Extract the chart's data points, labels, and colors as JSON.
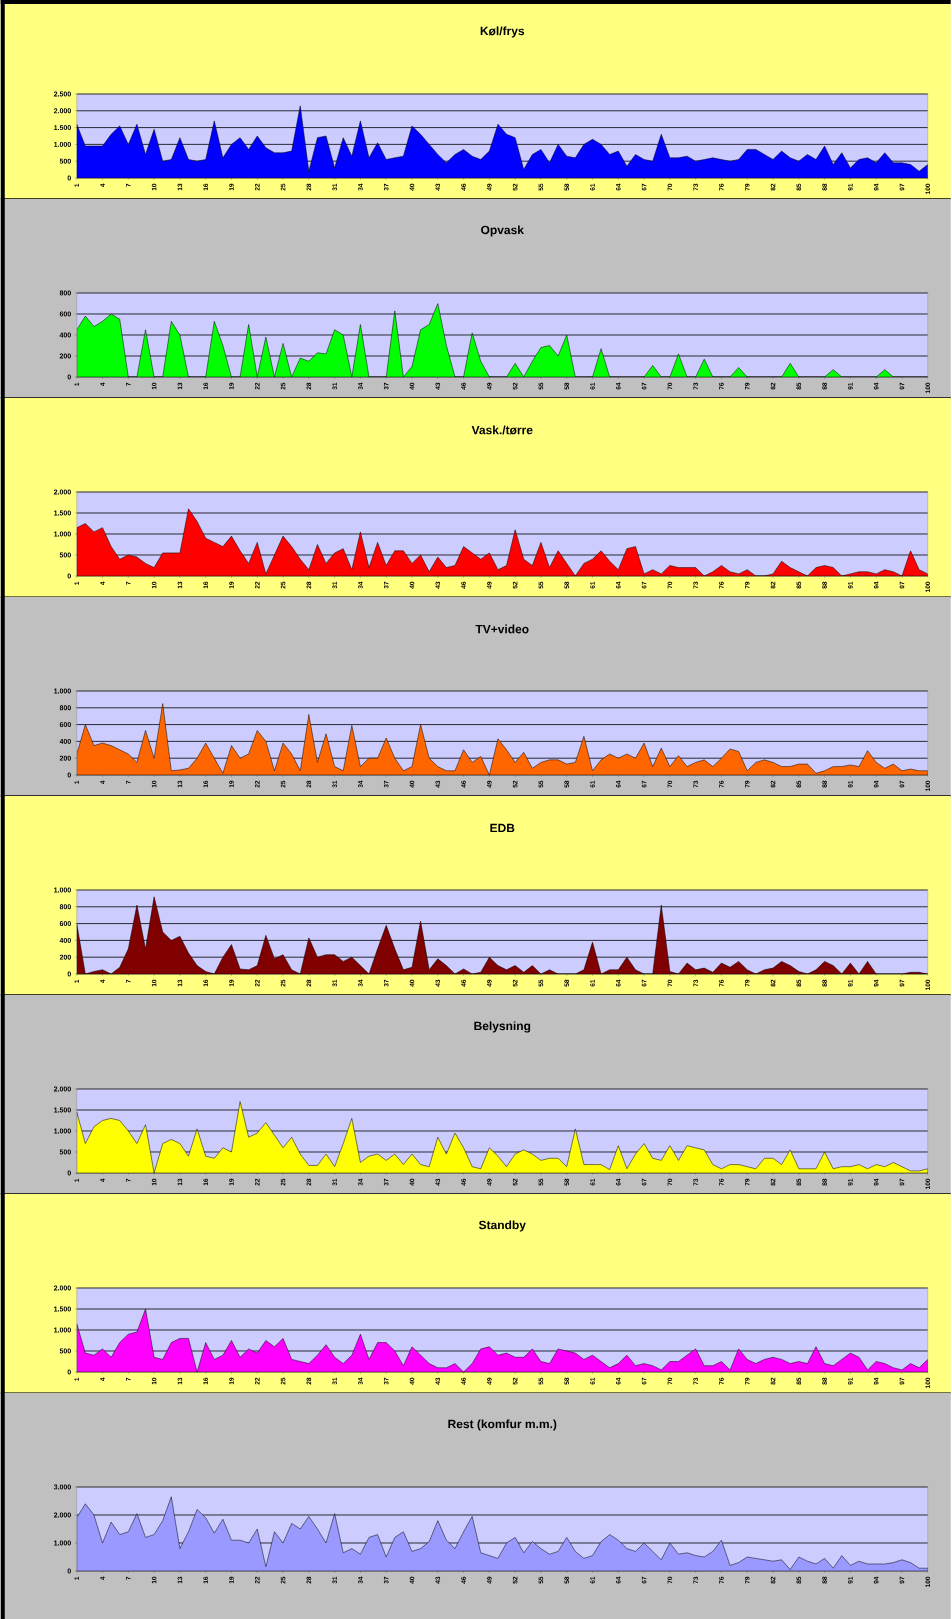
{
  "chart_data": [
    {
      "type": "area",
      "title": "Køl/frys",
      "color": "#0000ff",
      "grid": "y",
      "xlim": [
        1,
        100
      ],
      "ylim": [
        0,
        2500
      ],
      "xticks": [
        1,
        4,
        7,
        10,
        13,
        16,
        19,
        22,
        25,
        28,
        31,
        34,
        37,
        40,
        43,
        46,
        49,
        52,
        55,
        58,
        61,
        64,
        67,
        70,
        73,
        76,
        79,
        82,
        85,
        88,
        91,
        94,
        97,
        100
      ],
      "yticks": [
        0,
        500,
        {
          "value": 1000,
          "label": "1.000"
        },
        {
          "value": 1500,
          "label": "1.500"
        },
        {
          "value": 2000,
          "label": "2.000"
        },
        {
          "value": 2500,
          "label": "2.500"
        }
      ],
      "x": [
        1,
        2,
        3,
        4,
        5,
        6,
        7,
        8,
        9,
        10,
        11,
        12,
        13,
        14,
        15,
        16,
        17,
        18,
        19,
        20,
        21,
        22,
        23,
        24,
        25,
        26,
        27,
        28,
        29,
        30,
        31,
        32,
        33,
        34,
        35,
        36,
        37,
        38,
        39,
        40,
        41,
        42,
        43,
        44,
        45,
        46,
        47,
        48,
        49,
        50,
        51,
        52,
        53,
        54,
        55,
        56,
        57,
        58,
        59,
        60,
        61,
        62,
        63,
        64,
        65,
        66,
        67,
        68,
        69,
        70,
        71,
        72,
        73,
        74,
        75,
        76,
        77,
        78,
        79,
        80,
        81,
        82,
        83,
        84,
        85,
        86,
        87,
        88,
        89,
        90,
        91,
        92,
        93,
        94,
        95,
        96,
        97,
        98,
        99,
        100
      ],
      "values": [
        1600,
        950,
        950,
        950,
        1300,
        1550,
        1000,
        1600,
        700,
        1450,
        500,
        550,
        1200,
        550,
        500,
        550,
        1700,
        600,
        1000,
        1200,
        850,
        1250,
        900,
        750,
        750,
        800,
        2150,
        200,
        1200,
        1250,
        300,
        1200,
        650,
        1700,
        600,
        1050,
        550,
        600,
        650,
        1550,
        1300,
        1000,
        700,
        450,
        700,
        850,
        650,
        550,
        800,
        1600,
        1300,
        1200,
        250,
        700,
        850,
        450,
        1000,
        650,
        600,
        1000,
        1150,
        1000,
        700,
        800,
        350,
        700,
        550,
        500,
        1300,
        600,
        600,
        650,
        500,
        550,
        600,
        550,
        500,
        550,
        850,
        850,
        700,
        550,
        800,
        600,
        500,
        700,
        550,
        950,
        400,
        750,
        300,
        550,
        600,
        450,
        750,
        450,
        450,
        400,
        200,
        400
      ]
    },
    {
      "type": "area",
      "title": "Opvask",
      "color": "#00ff00",
      "grid": "y",
      "xlim": [
        1,
        100
      ],
      "ylim": [
        0,
        800
      ],
      "xticks": [
        1,
        4,
        7,
        10,
        13,
        16,
        19,
        22,
        25,
        28,
        31,
        34,
        37,
        40,
        43,
        46,
        49,
        52,
        55,
        58,
        61,
        64,
        67,
        70,
        73,
        76,
        79,
        82,
        85,
        88,
        91,
        94,
        97,
        100
      ],
      "yticks": [
        0,
        200,
        400,
        600,
        800
      ],
      "x": [
        1,
        2,
        3,
        4,
        5,
        6,
        7,
        8,
        9,
        10,
        11,
        12,
        13,
        14,
        15,
        16,
        17,
        18,
        19,
        20,
        21,
        22,
        23,
        24,
        25,
        26,
        27,
        28,
        29,
        30,
        31,
        32,
        33,
        34,
        35,
        36,
        37,
        38,
        39,
        40,
        41,
        42,
        43,
        44,
        45,
        46,
        47,
        48,
        49,
        50,
        51,
        52,
        53,
        54,
        55,
        56,
        57,
        58,
        59,
        60,
        61,
        62,
        63,
        64,
        65,
        66,
        67,
        68,
        69,
        70,
        71,
        72,
        73,
        74,
        75,
        76,
        77,
        78,
        79,
        80,
        81,
        82,
        83,
        84,
        85,
        86,
        87,
        88,
        89,
        90,
        91,
        92,
        93,
        94,
        95,
        96,
        97,
        98,
        99,
        100
      ],
      "values": [
        450,
        580,
        480,
        530,
        600,
        550,
        0,
        0,
        450,
        0,
        0,
        530,
        400,
        0,
        0,
        0,
        530,
        300,
        0,
        0,
        500,
        0,
        380,
        0,
        320,
        0,
        180,
        150,
        230,
        220,
        450,
        400,
        0,
        500,
        0,
        0,
        0,
        630,
        0,
        100,
        450,
        500,
        700,
        300,
        0,
        0,
        420,
        150,
        0,
        0,
        0,
        130,
        0,
        150,
        280,
        300,
        200,
        400,
        0,
        0,
        0,
        270,
        0,
        0,
        0,
        0,
        0,
        110,
        0,
        0,
        220,
        0,
        0,
        170,
        0,
        0,
        0,
        90,
        0,
        0,
        0,
        0,
        0,
        130,
        0,
        0,
        0,
        0,
        70,
        0,
        0,
        0,
        0,
        0,
        70,
        0,
        0,
        0,
        0,
        0
      ]
    },
    {
      "type": "area",
      "title": "Vask./tørre",
      "color": "#ff0000",
      "grid": "y",
      "xlim": [
        1,
        100
      ],
      "ylim": [
        0,
        2000
      ],
      "xticks": [
        1,
        4,
        7,
        10,
        13,
        16,
        19,
        22,
        25,
        28,
        31,
        34,
        37,
        40,
        43,
        46,
        49,
        52,
        55,
        58,
        61,
        64,
        67,
        70,
        73,
        76,
        79,
        82,
        85,
        88,
        91,
        94,
        97,
        100
      ],
      "yticks": [
        0,
        500,
        {
          "value": 1000,
          "label": "1.000"
        },
        {
          "value": 1500,
          "label": "1.500"
        },
        {
          "value": 2000,
          "label": "2.000"
        }
      ],
      "x": [
        1,
        2,
        3,
        4,
        5,
        6,
        7,
        8,
        9,
        10,
        11,
        12,
        13,
        14,
        15,
        16,
        17,
        18,
        19,
        20,
        21,
        22,
        23,
        24,
        25,
        26,
        27,
        28,
        29,
        30,
        31,
        32,
        33,
        34,
        35,
        36,
        37,
        38,
        39,
        40,
        41,
        42,
        43,
        44,
        45,
        46,
        47,
        48,
        49,
        50,
        51,
        52,
        53,
        54,
        55,
        56,
        57,
        58,
        59,
        60,
        61,
        62,
        63,
        64,
        65,
        66,
        67,
        68,
        69,
        70,
        71,
        72,
        73,
        74,
        75,
        76,
        77,
        78,
        79,
        80,
        81,
        82,
        83,
        84,
        85,
        86,
        87,
        88,
        89,
        90,
        91,
        92,
        93,
        94,
        95,
        96,
        97,
        98,
        99,
        100
      ],
      "values": [
        1150,
        1250,
        1050,
        1150,
        700,
        400,
        500,
        450,
        300,
        200,
        550,
        550,
        550,
        1600,
        1300,
        900,
        800,
        700,
        950,
        600,
        300,
        800,
        50,
        500,
        950,
        700,
        400,
        150,
        750,
        300,
        550,
        650,
        150,
        1050,
        200,
        800,
        250,
        600,
        600,
        300,
        500,
        100,
        450,
        200,
        250,
        700,
        550,
        400,
        550,
        150,
        250,
        1100,
        400,
        250,
        800,
        200,
        600,
        300,
        0,
        300,
        400,
        600,
        350,
        150,
        650,
        700,
        50,
        150,
        50,
        250,
        200,
        200,
        200,
        0,
        100,
        250,
        100,
        50,
        150,
        0,
        0,
        50,
        350,
        200,
        100,
        0,
        200,
        250,
        200,
        0,
        50,
        100,
        100,
        50,
        150,
        100,
        0,
        600,
        150,
        50
      ]
    },
    {
      "type": "area",
      "title": "TV+video",
      "color": "#ff6600",
      "grid": "y",
      "xlim": [
        1,
        100
      ],
      "ylim": [
        0,
        1000
      ],
      "xticks": [
        1,
        4,
        7,
        10,
        13,
        16,
        19,
        22,
        25,
        28,
        31,
        34,
        37,
        40,
        43,
        46,
        49,
        52,
        55,
        58,
        61,
        64,
        67,
        70,
        73,
        76,
        79,
        82,
        85,
        88,
        91,
        94,
        97,
        100
      ],
      "yticks": [
        0,
        200,
        400,
        600,
        800,
        {
          "value": 1000,
          "label": "1.000"
        }
      ],
      "x": [
        1,
        2,
        3,
        4,
        5,
        6,
        7,
        8,
        9,
        10,
        11,
        12,
        13,
        14,
        15,
        16,
        17,
        18,
        19,
        20,
        21,
        22,
        23,
        24,
        25,
        26,
        27,
        28,
        29,
        30,
        31,
        32,
        33,
        34,
        35,
        36,
        37,
        38,
        39,
        40,
        41,
        42,
        43,
        44,
        45,
        46,
        47,
        48,
        49,
        50,
        51,
        52,
        53,
        54,
        55,
        56,
        57,
        58,
        59,
        60,
        61,
        62,
        63,
        64,
        65,
        66,
        67,
        68,
        69,
        70,
        71,
        72,
        73,
        74,
        75,
        76,
        77,
        78,
        79,
        80,
        81,
        82,
        83,
        84,
        85,
        86,
        87,
        88,
        89,
        90,
        91,
        92,
        93,
        94,
        95,
        96,
        97,
        98,
        99,
        100
      ],
      "values": [
        250,
        600,
        350,
        380,
        350,
        300,
        250,
        150,
        530,
        200,
        850,
        50,
        60,
        80,
        200,
        380,
        200,
        20,
        350,
        200,
        250,
        530,
        400,
        50,
        380,
        250,
        50,
        720,
        150,
        490,
        100,
        50,
        590,
        100,
        200,
        200,
        440,
        200,
        50,
        100,
        600,
        200,
        100,
        50,
        50,
        300,
        150,
        220,
        0,
        430,
        300,
        150,
        270,
        80,
        150,
        180,
        180,
        130,
        150,
        460,
        50,
        180,
        250,
        200,
        250,
        200,
        380,
        100,
        320,
        100,
        230,
        100,
        150,
        180,
        100,
        200,
        310,
        280,
        50,
        150,
        180,
        150,
        100,
        100,
        130,
        130,
        20,
        50,
        100,
        100,
        120,
        100,
        290,
        150,
        80,
        130,
        50,
        70,
        50,
        50
      ]
    },
    {
      "type": "area",
      "title": "EDB",
      "color": "#800000",
      "grid": "y",
      "xlim": [
        1,
        100
      ],
      "ylim": [
        0,
        1000
      ],
      "xticks": [
        1,
        4,
        7,
        10,
        13,
        16,
        19,
        22,
        25,
        28,
        31,
        34,
        37,
        40,
        43,
        46,
        49,
        52,
        55,
        58,
        61,
        64,
        67,
        70,
        73,
        76,
        79,
        82,
        85,
        88,
        91,
        94,
        97,
        100
      ],
      "yticks": [
        0,
        200,
        400,
        600,
        800,
        {
          "value": 1000,
          "label": "1.000"
        }
      ],
      "x": [
        1,
        2,
        3,
        4,
        5,
        6,
        7,
        8,
        9,
        10,
        11,
        12,
        13,
        14,
        15,
        16,
        17,
        18,
        19,
        20,
        21,
        22,
        23,
        24,
        25,
        26,
        27,
        28,
        29,
        30,
        31,
        32,
        33,
        34,
        35,
        36,
        37,
        38,
        39,
        40,
        41,
        42,
        43,
        44,
        45,
        46,
        47,
        48,
        49,
        50,
        51,
        52,
        53,
        54,
        55,
        56,
        57,
        58,
        59,
        60,
        61,
        62,
        63,
        64,
        65,
        66,
        67,
        68,
        69,
        70,
        71,
        72,
        73,
        74,
        75,
        76,
        77,
        78,
        79,
        80,
        81,
        82,
        83,
        84,
        85,
        86,
        87,
        88,
        89,
        90,
        91,
        92,
        93,
        94,
        95,
        96,
        97,
        98,
        99,
        100
      ],
      "values": [
        600,
        0,
        30,
        50,
        0,
        80,
        300,
        820,
        300,
        920,
        500,
        400,
        450,
        250,
        100,
        30,
        0,
        200,
        350,
        60,
        50,
        100,
        460,
        180,
        230,
        50,
        0,
        430,
        200,
        230,
        230,
        150,
        200,
        100,
        0,
        300,
        580,
        300,
        50,
        80,
        630,
        50,
        180,
        100,
        0,
        60,
        0,
        20,
        200,
        100,
        50,
        100,
        20,
        100,
        0,
        50,
        0,
        0,
        0,
        50,
        380,
        0,
        50,
        50,
        200,
        50,
        0,
        0,
        820,
        30,
        0,
        130,
        50,
        70,
        20,
        130,
        80,
        150,
        50,
        0,
        50,
        70,
        150,
        100,
        30,
        0,
        50,
        150,
        100,
        0,
        130,
        0,
        150,
        0,
        0,
        0,
        0,
        20,
        20,
        0
      ]
    },
    {
      "type": "area",
      "title": "Belysning",
      "color": "#ffff00",
      "grid": "y",
      "xlim": [
        1,
        100
      ],
      "ylim": [
        0,
        2000
      ],
      "xticks": [
        1,
        4,
        7,
        10,
        13,
        16,
        19,
        22,
        25,
        28,
        31,
        34,
        37,
        40,
        43,
        46,
        49,
        52,
        55,
        58,
        61,
        64,
        67,
        70,
        73,
        76,
        79,
        82,
        85,
        88,
        91,
        94,
        97,
        100
      ],
      "yticks": [
        0,
        500,
        {
          "value": 1000,
          "label": "1.000"
        },
        {
          "value": 1500,
          "label": "1.500"
        },
        {
          "value": 2000,
          "label": "2.000"
        }
      ],
      "x": [
        1,
        2,
        3,
        4,
        5,
        6,
        7,
        8,
        9,
        10,
        11,
        12,
        13,
        14,
        15,
        16,
        17,
        18,
        19,
        20,
        21,
        22,
        23,
        24,
        25,
        26,
        27,
        28,
        29,
        30,
        31,
        32,
        33,
        34,
        35,
        36,
        37,
        38,
        39,
        40,
        41,
        42,
        43,
        44,
        45,
        46,
        47,
        48,
        49,
        50,
        51,
        52,
        53,
        54,
        55,
        56,
        57,
        58,
        59,
        60,
        61,
        62,
        63,
        64,
        65,
        66,
        67,
        68,
        69,
        70,
        71,
        72,
        73,
        74,
        75,
        76,
        77,
        78,
        79,
        80,
        81,
        82,
        83,
        84,
        85,
        86,
        87,
        88,
        89,
        90,
        91,
        92,
        93,
        94,
        95,
        96,
        97,
        98,
        99,
        100
      ],
      "values": [
        1450,
        700,
        1100,
        1250,
        1300,
        1250,
        1000,
        700,
        1150,
        0,
        700,
        800,
        700,
        400,
        1050,
        400,
        350,
        600,
        500,
        1700,
        850,
        950,
        1200,
        900,
        600,
        850,
        450,
        180,
        180,
        450,
        150,
        700,
        1300,
        250,
        400,
        450,
        300,
        450,
        200,
        450,
        200,
        150,
        850,
        450,
        950,
        600,
        150,
        100,
        600,
        400,
        150,
        450,
        550,
        450,
        300,
        350,
        350,
        150,
        1050,
        200,
        200,
        200,
        80,
        650,
        100,
        450,
        700,
        350,
        300,
        650,
        300,
        650,
        600,
        550,
        200,
        100,
        200,
        200,
        150,
        100,
        350,
        350,
        200,
        550,
        100,
        100,
        100,
        500,
        100,
        150,
        150,
        200,
        100,
        200,
        150,
        250,
        150,
        50,
        50,
        100
      ]
    },
    {
      "type": "area",
      "title": "Standby",
      "color": "#ff00ff",
      "grid": "y",
      "xlim": [
        1,
        100
      ],
      "ylim": [
        0,
        2000
      ],
      "xticks": [
        1,
        4,
        7,
        10,
        13,
        16,
        19,
        22,
        25,
        28,
        31,
        34,
        37,
        40,
        43,
        46,
        49,
        52,
        55,
        58,
        61,
        64,
        67,
        70,
        73,
        76,
        79,
        82,
        85,
        88,
        91,
        94,
        97,
        100
      ],
      "yticks": [
        0,
        500,
        {
          "value": 1000,
          "label": "1.000"
        },
        {
          "value": 1500,
          "label": "1.500"
        },
        {
          "value": 2000,
          "label": "2.000"
        }
      ],
      "x": [
        1,
        2,
        3,
        4,
        5,
        6,
        7,
        8,
        9,
        10,
        11,
        12,
        13,
        14,
        15,
        16,
        17,
        18,
        19,
        20,
        21,
        22,
        23,
        24,
        25,
        26,
        27,
        28,
        29,
        30,
        31,
        32,
        33,
        34,
        35,
        36,
        37,
        38,
        39,
        40,
        41,
        42,
        43,
        44,
        45,
        46,
        47,
        48,
        49,
        50,
        51,
        52,
        53,
        54,
        55,
        56,
        57,
        58,
        59,
        60,
        61,
        62,
        63,
        64,
        65,
        66,
        67,
        68,
        69,
        70,
        71,
        72,
        73,
        74,
        75,
        76,
        77,
        78,
        79,
        80,
        81,
        82,
        83,
        84,
        85,
        86,
        87,
        88,
        89,
        90,
        91,
        92,
        93,
        94,
        95,
        96,
        97,
        98,
        99,
        100
      ],
      "values": [
        1150,
        450,
        400,
        550,
        350,
        700,
        900,
        950,
        1500,
        350,
        300,
        700,
        800,
        800,
        0,
        700,
        300,
        400,
        750,
        350,
        550,
        450,
        750,
        600,
        800,
        300,
        250,
        200,
        400,
        650,
        350,
        200,
        400,
        900,
        300,
        700,
        700,
        500,
        150,
        600,
        400,
        200,
        100,
        100,
        200,
        0,
        200,
        550,
        600,
        400,
        450,
        350,
        350,
        550,
        250,
        200,
        550,
        500,
        450,
        300,
        400,
        250,
        100,
        200,
        400,
        150,
        200,
        150,
        50,
        250,
        250,
        400,
        550,
        150,
        150,
        250,
        50,
        550,
        300,
        200,
        300,
        350,
        300,
        200,
        250,
        200,
        600,
        200,
        150,
        300,
        450,
        350,
        50,
        250,
        200,
        100,
        50,
        200,
        100,
        300
      ]
    },
    {
      "type": "area",
      "title": "Rest (komfur m.m.)",
      "color": "#9999ff",
      "grid": "y",
      "xlim": [
        1,
        100
      ],
      "ylim": [
        0,
        3000
      ],
      "xticks": [
        1,
        4,
        7,
        10,
        13,
        16,
        19,
        22,
        25,
        28,
        31,
        34,
        37,
        40,
        43,
        46,
        49,
        52,
        55,
        58,
        61,
        64,
        67,
        70,
        73,
        76,
        79,
        82,
        85,
        88,
        91,
        94,
        97,
        100
      ],
      "yticks": [
        0,
        {
          "value": 1000,
          "label": "1.000"
        },
        {
          "value": 2000,
          "label": "2.000"
        },
        {
          "value": 3000,
          "label": "3.000"
        }
      ],
      "x": [
        1,
        2,
        3,
        4,
        5,
        6,
        7,
        8,
        9,
        10,
        11,
        12,
        13,
        14,
        15,
        16,
        17,
        18,
        19,
        20,
        21,
        22,
        23,
        24,
        25,
        26,
        27,
        28,
        29,
        30,
        31,
        32,
        33,
        34,
        35,
        36,
        37,
        38,
        39,
        40,
        41,
        42,
        43,
        44,
        45,
        46,
        47,
        48,
        49,
        50,
        51,
        52,
        53,
        54,
        55,
        56,
        57,
        58,
        59,
        60,
        61,
        62,
        63,
        64,
        65,
        66,
        67,
        68,
        69,
        70,
        71,
        72,
        73,
        74,
        75,
        76,
        77,
        78,
        79,
        80,
        81,
        82,
        83,
        84,
        85,
        86,
        87,
        88,
        89,
        90,
        91,
        92,
        93,
        94,
        95,
        96,
        97,
        98,
        99,
        100
      ],
      "values": [
        1900,
        2400,
        2000,
        1000,
        1750,
        1300,
        1400,
        2050,
        1200,
        1300,
        1800,
        2650,
        800,
        1400,
        2200,
        1900,
        1350,
        1850,
        1100,
        1100,
        1000,
        1500,
        150,
        1400,
        1000,
        1700,
        1500,
        1950,
        1500,
        1000,
        2050,
        650,
        800,
        600,
        1200,
        1300,
        500,
        1200,
        1400,
        700,
        800,
        1050,
        1800,
        1100,
        800,
        1400,
        1950,
        650,
        550,
        450,
        1000,
        1200,
        650,
        1050,
        800,
        600,
        700,
        1200,
        700,
        450,
        550,
        1050,
        1300,
        1100,
        800,
        700,
        1000,
        700,
        400,
        1000,
        600,
        650,
        550,
        500,
        700,
        1100,
        200,
        300,
        500,
        450,
        400,
        350,
        400,
        50,
        500,
        350,
        250,
        450,
        100,
        550,
        200,
        350,
        250,
        250,
        250,
        300,
        400,
        300,
        100,
        100
      ]
    }
  ]
}
